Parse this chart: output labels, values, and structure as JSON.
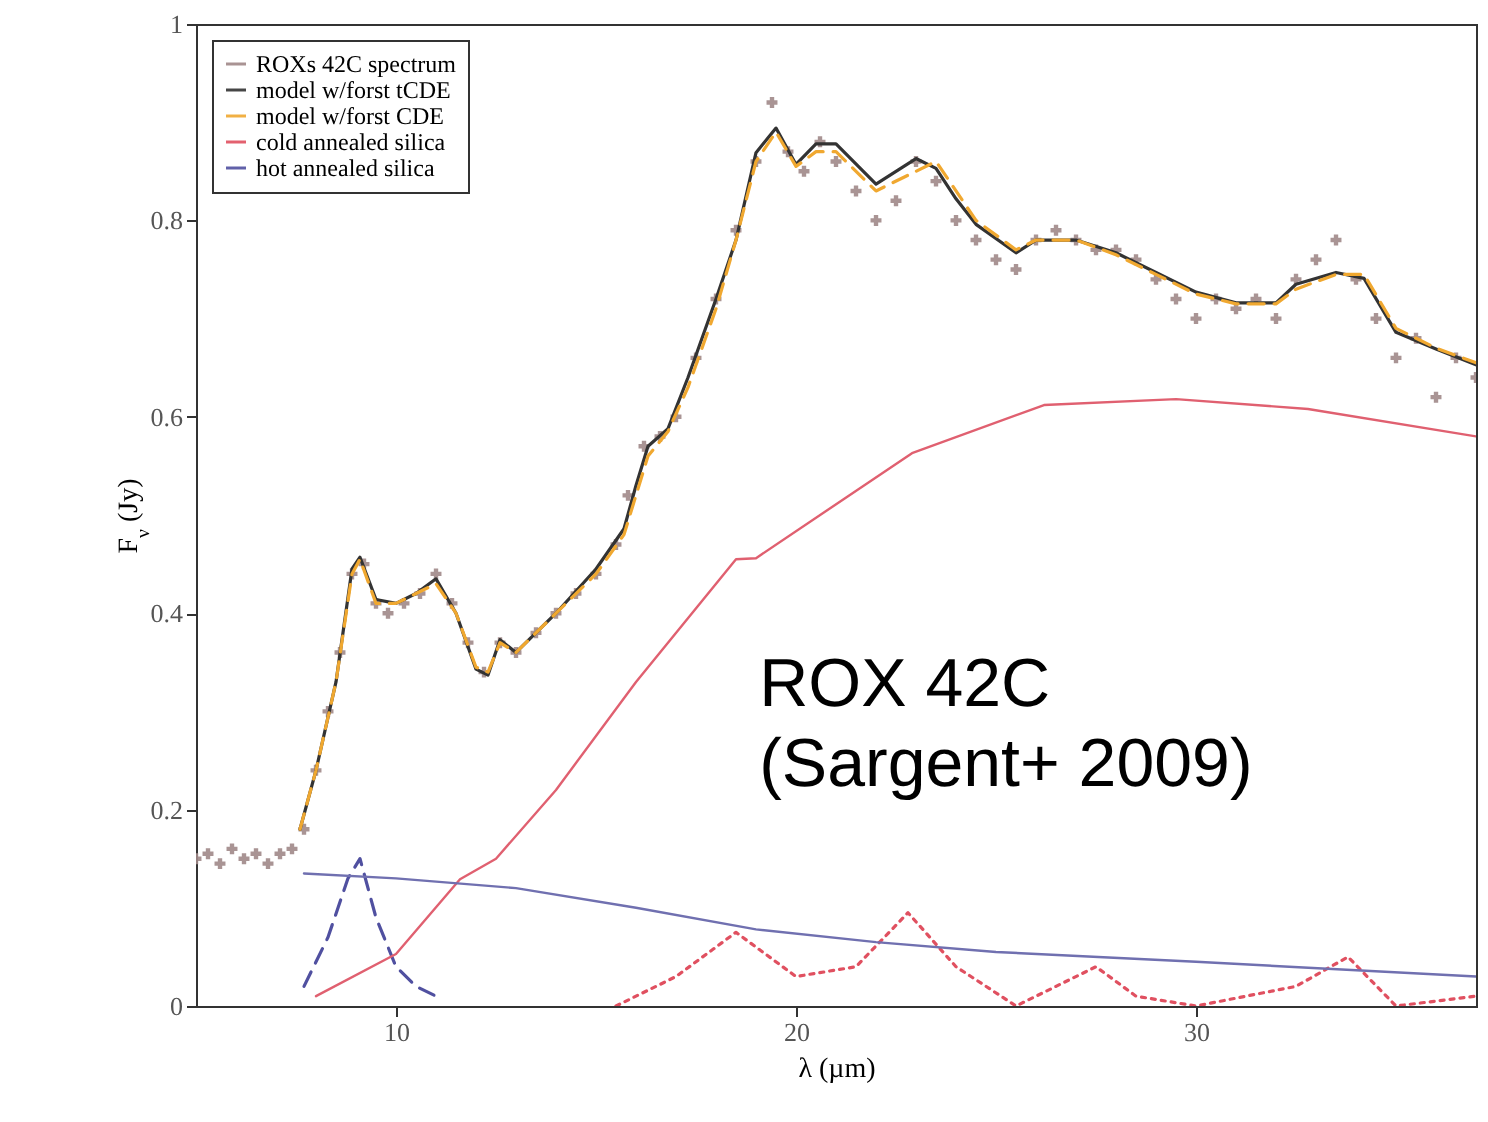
{
  "chart_data": {
    "type": "line",
    "xlabel": "λ (µm)",
    "ylabel": "F$_{ν}$ (Jy)",
    "xlim": [
      5,
      37
    ],
    "xticks": [
      10,
      20,
      30
    ],
    "ylim": [
      0,
      1
    ],
    "yticks": [
      0,
      0.2,
      0.4,
      0.6,
      0.8,
      1
    ],
    "grid": false,
    "legend": "top left",
    "annotations": [
      "ROX 42C\n(Sargent+ 2009)"
    ],
    "series": [
      {
        "name": "ROXs 42C spectrum",
        "type": "scatter",
        "marker": "cross",
        "color": "#a08888",
        "x": [
          5.0,
          5.3,
          5.6,
          5.9,
          6.2,
          6.5,
          6.8,
          7.1,
          7.4,
          7.7,
          8.0,
          8.3,
          8.6,
          8.9,
          9.2,
          9.5,
          9.8,
          10.2,
          10.6,
          11.0,
          11.4,
          11.8,
          12.2,
          12.6,
          13.0,
          13.5,
          14.0,
          14.5,
          15.0,
          15.5,
          15.8,
          16.2,
          16.6,
          17.0,
          17.5,
          18.0,
          18.5,
          19.0,
          19.4,
          19.8,
          20.2,
          20.6,
          21.0,
          21.5,
          22.0,
          22.5,
          23.0,
          23.5,
          24.0,
          24.5,
          25.0,
          25.5,
          26.0,
          26.5,
          27.0,
          27.5,
          28.0,
          28.5,
          29.0,
          29.5,
          30.0,
          30.5,
          31.0,
          31.5,
          32.0,
          32.5,
          33.0,
          33.5,
          34.0,
          34.5,
          35.0,
          35.5,
          36.0,
          36.5,
          37.0
        ],
        "values": [
          0.15,
          0.155,
          0.145,
          0.16,
          0.15,
          0.155,
          0.145,
          0.155,
          0.16,
          0.18,
          0.24,
          0.3,
          0.36,
          0.44,
          0.45,
          0.41,
          0.4,
          0.41,
          0.42,
          0.44,
          0.41,
          0.37,
          0.34,
          0.37,
          0.36,
          0.38,
          0.4,
          0.42,
          0.44,
          0.47,
          0.52,
          0.57,
          0.58,
          0.6,
          0.66,
          0.72,
          0.79,
          0.86,
          0.92,
          0.87,
          0.85,
          0.88,
          0.86,
          0.83,
          0.8,
          0.82,
          0.86,
          0.84,
          0.8,
          0.78,
          0.76,
          0.75,
          0.78,
          0.79,
          0.78,
          0.77,
          0.77,
          0.76,
          0.74,
          0.72,
          0.7,
          0.72,
          0.71,
          0.72,
          0.7,
          0.74,
          0.76,
          0.78,
          0.74,
          0.7,
          0.66,
          0.68,
          0.62,
          0.66,
          0.64
        ]
      },
      {
        "name": "model w/forst tCDE",
        "color": "#333333",
        "line_style": "solid",
        "x": [
          7.6,
          8.0,
          8.5,
          8.9,
          9.1,
          9.5,
          10.0,
          10.5,
          11.0,
          11.5,
          12.0,
          12.3,
          12.6,
          13.0,
          14.0,
          15.0,
          15.7,
          16.0,
          16.3,
          16.8,
          17.3,
          18.0,
          18.5,
          19.0,
          19.5,
          20.0,
          20.5,
          21.0,
          22.0,
          23.0,
          23.5,
          24.0,
          24.5,
          25.5,
          26.0,
          27.0,
          28.0,
          29.0,
          30.0,
          31.0,
          32.0,
          32.5,
          33.5,
          34.2,
          35.0,
          36.0,
          37.0
        ],
        "values": [
          0.18,
          0.24,
          0.33,
          0.445,
          0.457,
          0.414,
          0.41,
          0.42,
          0.435,
          0.4,
          0.343,
          0.337,
          0.373,
          0.36,
          0.4,
          0.445,
          0.486,
          0.53,
          0.57,
          0.588,
          0.64,
          0.72,
          0.78,
          0.869,
          0.894,
          0.857,
          0.878,
          0.878,
          0.837,
          0.863,
          0.853,
          0.822,
          0.796,
          0.767,
          0.78,
          0.78,
          0.767,
          0.747,
          0.727,
          0.716,
          0.716,
          0.735,
          0.747,
          0.741,
          0.686,
          0.669,
          0.653
        ]
      },
      {
        "name": "model w/forst CDE",
        "color": "#f0a830",
        "line_style": "dashed",
        "x": [
          7.6,
          8.0,
          8.5,
          8.9,
          9.1,
          9.5,
          10.0,
          10.5,
          11.0,
          11.5,
          12.0,
          12.3,
          12.6,
          13.0,
          14.0,
          15.0,
          15.7,
          16.0,
          16.3,
          16.8,
          17.3,
          18.0,
          18.5,
          19.0,
          19.5,
          20.0,
          20.5,
          21.0,
          22.0,
          23.0,
          23.5,
          24.0,
          24.5,
          25.5,
          26.0,
          27.0,
          28.0,
          29.0,
          30.0,
          31.0,
          32.0,
          32.5,
          33.5,
          34.2,
          35.0,
          36.0,
          37.0
        ],
        "values": [
          0.18,
          0.24,
          0.33,
          0.44,
          0.455,
          0.41,
          0.41,
          0.42,
          0.43,
          0.4,
          0.345,
          0.34,
          0.37,
          0.36,
          0.4,
          0.44,
          0.48,
          0.52,
          0.56,
          0.585,
          0.63,
          0.71,
          0.78,
          0.86,
          0.89,
          0.855,
          0.87,
          0.87,
          0.83,
          0.85,
          0.86,
          0.83,
          0.8,
          0.77,
          0.78,
          0.78,
          0.765,
          0.745,
          0.725,
          0.715,
          0.715,
          0.73,
          0.745,
          0.745,
          0.69,
          0.67,
          0.655
        ]
      },
      {
        "name": "cold annealed silica",
        "color": "#e05060",
        "line_style": "dotted",
        "x": [
          15.5,
          17.0,
          18.5,
          20.0,
          21.5,
          22.8,
          24.0,
          25.5,
          26.5,
          27.5,
          28.5,
          30.0,
          32.5,
          33.8,
          35.0,
          37.0
        ],
        "values": [
          0.0,
          0.03,
          0.075,
          0.03,
          0.04,
          0.095,
          0.04,
          0.0,
          0.02,
          0.04,
          0.01,
          0.0,
          0.02,
          0.05,
          0.0,
          0.01
        ]
      },
      {
        "name": "hot annealed silica",
        "color": "#5050a0",
        "line_style": "dashed",
        "x": [
          7.7,
          8.3,
          8.8,
          9.1,
          9.5,
          10.0,
          10.5,
          11.0
        ],
        "values": [
          0.02,
          0.07,
          0.13,
          0.15,
          0.09,
          0.04,
          0.02,
          0.01
        ]
      },
      {
        "color": "#e06070",
        "line_style": "solid",
        "x": [
          8.0,
          10.0,
          11.6,
          12.5,
          14.0,
          16.0,
          18.5,
          19.0,
          22.9,
          26.2,
          29.5,
          32.8,
          37.0
        ],
        "values": [
          0.01,
          0.053,
          0.129,
          0.15,
          0.22,
          0.33,
          0.455,
          0.456,
          0.563,
          0.612,
          0.618,
          0.608,
          0.58
        ]
      },
      {
        "color": "#7070b0",
        "line_style": "solid",
        "x": [
          7.7,
          10.0,
          13.0,
          16.0,
          19.0,
          22.0,
          25.0,
          30.0,
          37.0
        ],
        "values": [
          0.135,
          0.13,
          0.12,
          0.1,
          0.078,
          0.065,
          0.055,
          0.045,
          0.03
        ]
      }
    ]
  }
}
